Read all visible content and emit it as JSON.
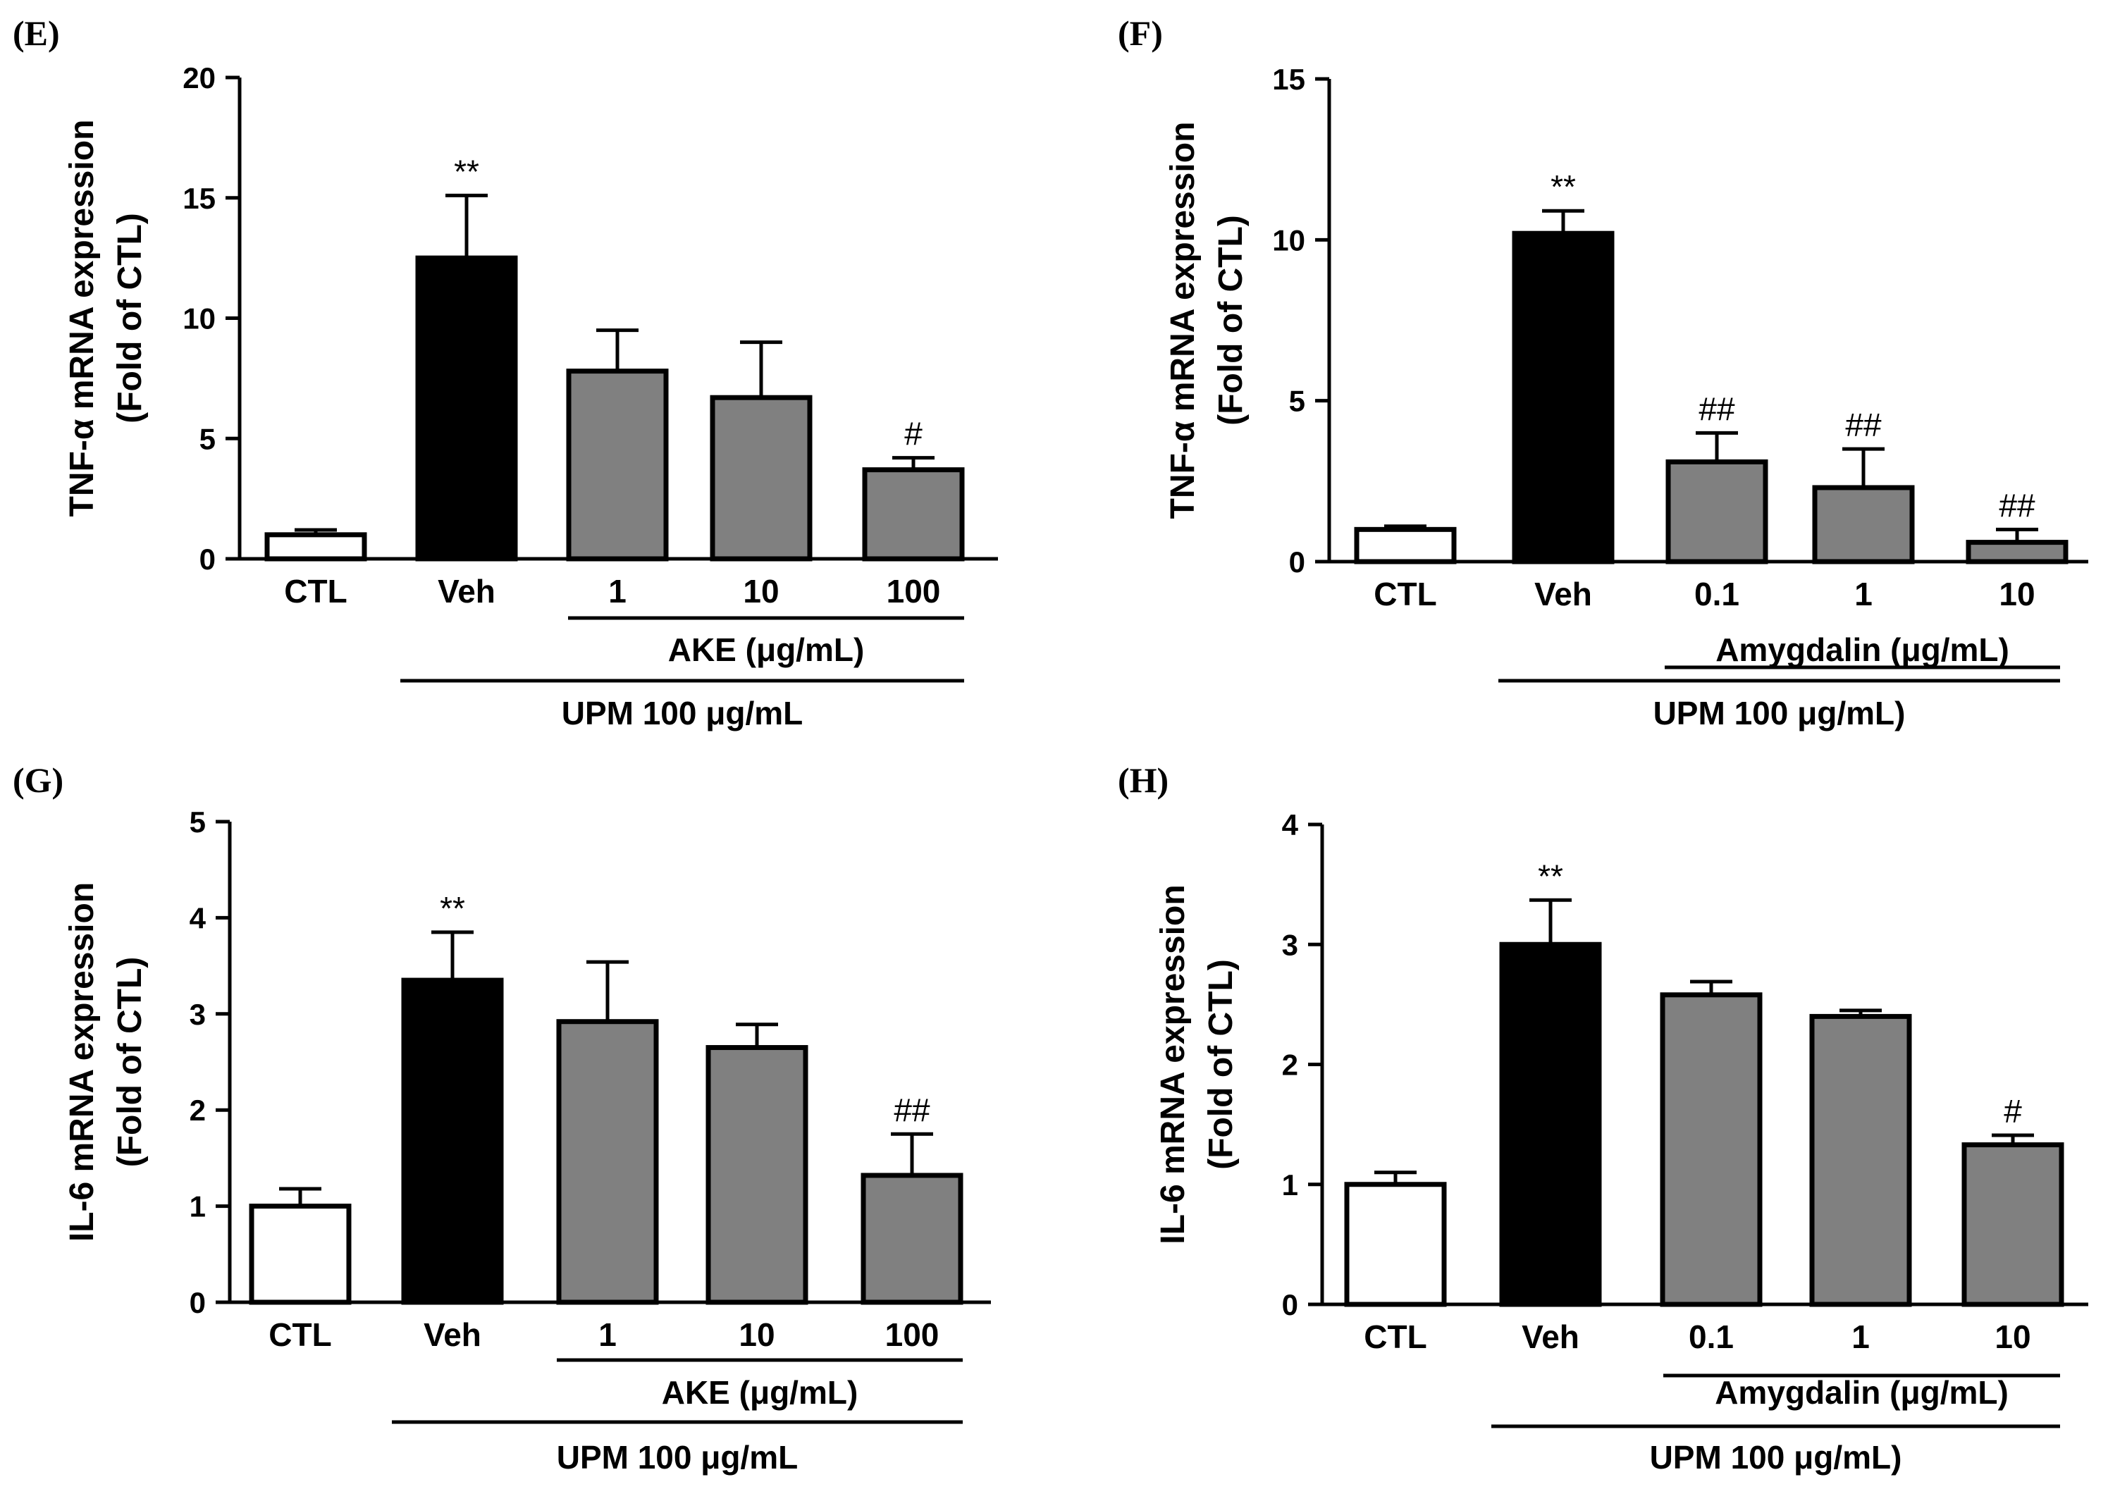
{
  "colors": {
    "white": "#ffffff",
    "black": "#000000",
    "gray": "#808080"
  },
  "chart_data": [
    {
      "type": "bar",
      "panel": "(E)",
      "ylabel_line1": "TNF-α mRNA expression",
      "ylabel_line2": "(Fold of CTL)",
      "ylim": [
        0,
        20
      ],
      "yticks": [
        0,
        5,
        10,
        15,
        20
      ],
      "yticks_text": [
        "0",
        "5",
        "10",
        "15",
        "20"
      ],
      "categories": [
        "CTL",
        "Veh",
        "1",
        "10",
        "100"
      ],
      "values": [
        1.0,
        12.5,
        7.8,
        6.7,
        3.7
      ],
      "errors": [
        0.2,
        2.6,
        1.7,
        2.3,
        0.5
      ],
      "bar_colors": [
        "white",
        "black",
        "gray",
        "gray",
        "gray"
      ],
      "significance": [
        "",
        "**",
        "",
        "",
        "#"
      ],
      "treatment_label": "AKE (μg/mL)",
      "upm_label": "UPM 100 μg/mL"
    },
    {
      "type": "bar",
      "panel": "(F)",
      "ylabel_line1": "TNF-α mRNA expression",
      "ylabel_line2": "(Fold of CTL)",
      "ylim": [
        0,
        15
      ],
      "yticks": [
        0,
        5,
        10,
        15
      ],
      "yticks_text": [
        "0",
        "5",
        "10",
        "15"
      ],
      "categories": [
        "CTL",
        "Veh",
        "0.1",
        "1",
        "10"
      ],
      "values": [
        1.0,
        10.2,
        3.1,
        2.3,
        0.6
      ],
      "errors": [
        0.1,
        0.7,
        0.9,
        1.2,
        0.4
      ],
      "bar_colors": [
        "white",
        "black",
        "gray",
        "gray",
        "gray"
      ],
      "significance": [
        "",
        "**",
        "##",
        "##",
        "##"
      ],
      "treatment_label": "Amygdalin (μg/mL)",
      "upm_label": "UPM 100 μg/mL)"
    },
    {
      "type": "bar",
      "panel": "(G)",
      "ylabel_line1": "IL-6 mRNA expression",
      "ylabel_line2": "(Fold of CTL)",
      "ylim": [
        0,
        5
      ],
      "yticks": [
        0,
        1,
        2,
        3,
        4,
        5
      ],
      "yticks_text": [
        "0",
        "1",
        "2",
        "3",
        "4",
        "5"
      ],
      "categories": [
        "CTL",
        "Veh",
        "1",
        "10",
        "100"
      ],
      "values": [
        1.0,
        3.35,
        2.92,
        2.65,
        1.32
      ],
      "errors": [
        0.18,
        0.5,
        0.62,
        0.24,
        0.43
      ],
      "bar_colors": [
        "white",
        "black",
        "gray",
        "gray",
        "gray"
      ],
      "significance": [
        "",
        "**",
        "",
        "",
        "##"
      ],
      "treatment_label": "AKE (μg/mL)",
      "upm_label": "UPM 100 μg/mL"
    },
    {
      "type": "bar",
      "panel": "(H)",
      "ylabel_line1": "IL-6 mRNA expression",
      "ylabel_line2": "(Fold of CTL)",
      "ylim": [
        0,
        4
      ],
      "yticks": [
        0,
        1,
        2,
        3,
        4
      ],
      "yticks_text": [
        "0",
        "1",
        "2",
        "3",
        "4"
      ],
      "categories": [
        "CTL",
        "Veh",
        "0.1",
        "1",
        "10"
      ],
      "values": [
        1.0,
        3.0,
        2.58,
        2.4,
        1.33
      ],
      "errors": [
        0.1,
        0.37,
        0.11,
        0.05,
        0.08
      ],
      "bar_colors": [
        "white",
        "black",
        "gray",
        "gray",
        "gray"
      ],
      "significance": [
        "",
        "**",
        "",
        "",
        "#"
      ],
      "treatment_label": "Amygdalin (μg/mL)",
      "upm_label": "UPM 100 μg/mL)"
    }
  ]
}
